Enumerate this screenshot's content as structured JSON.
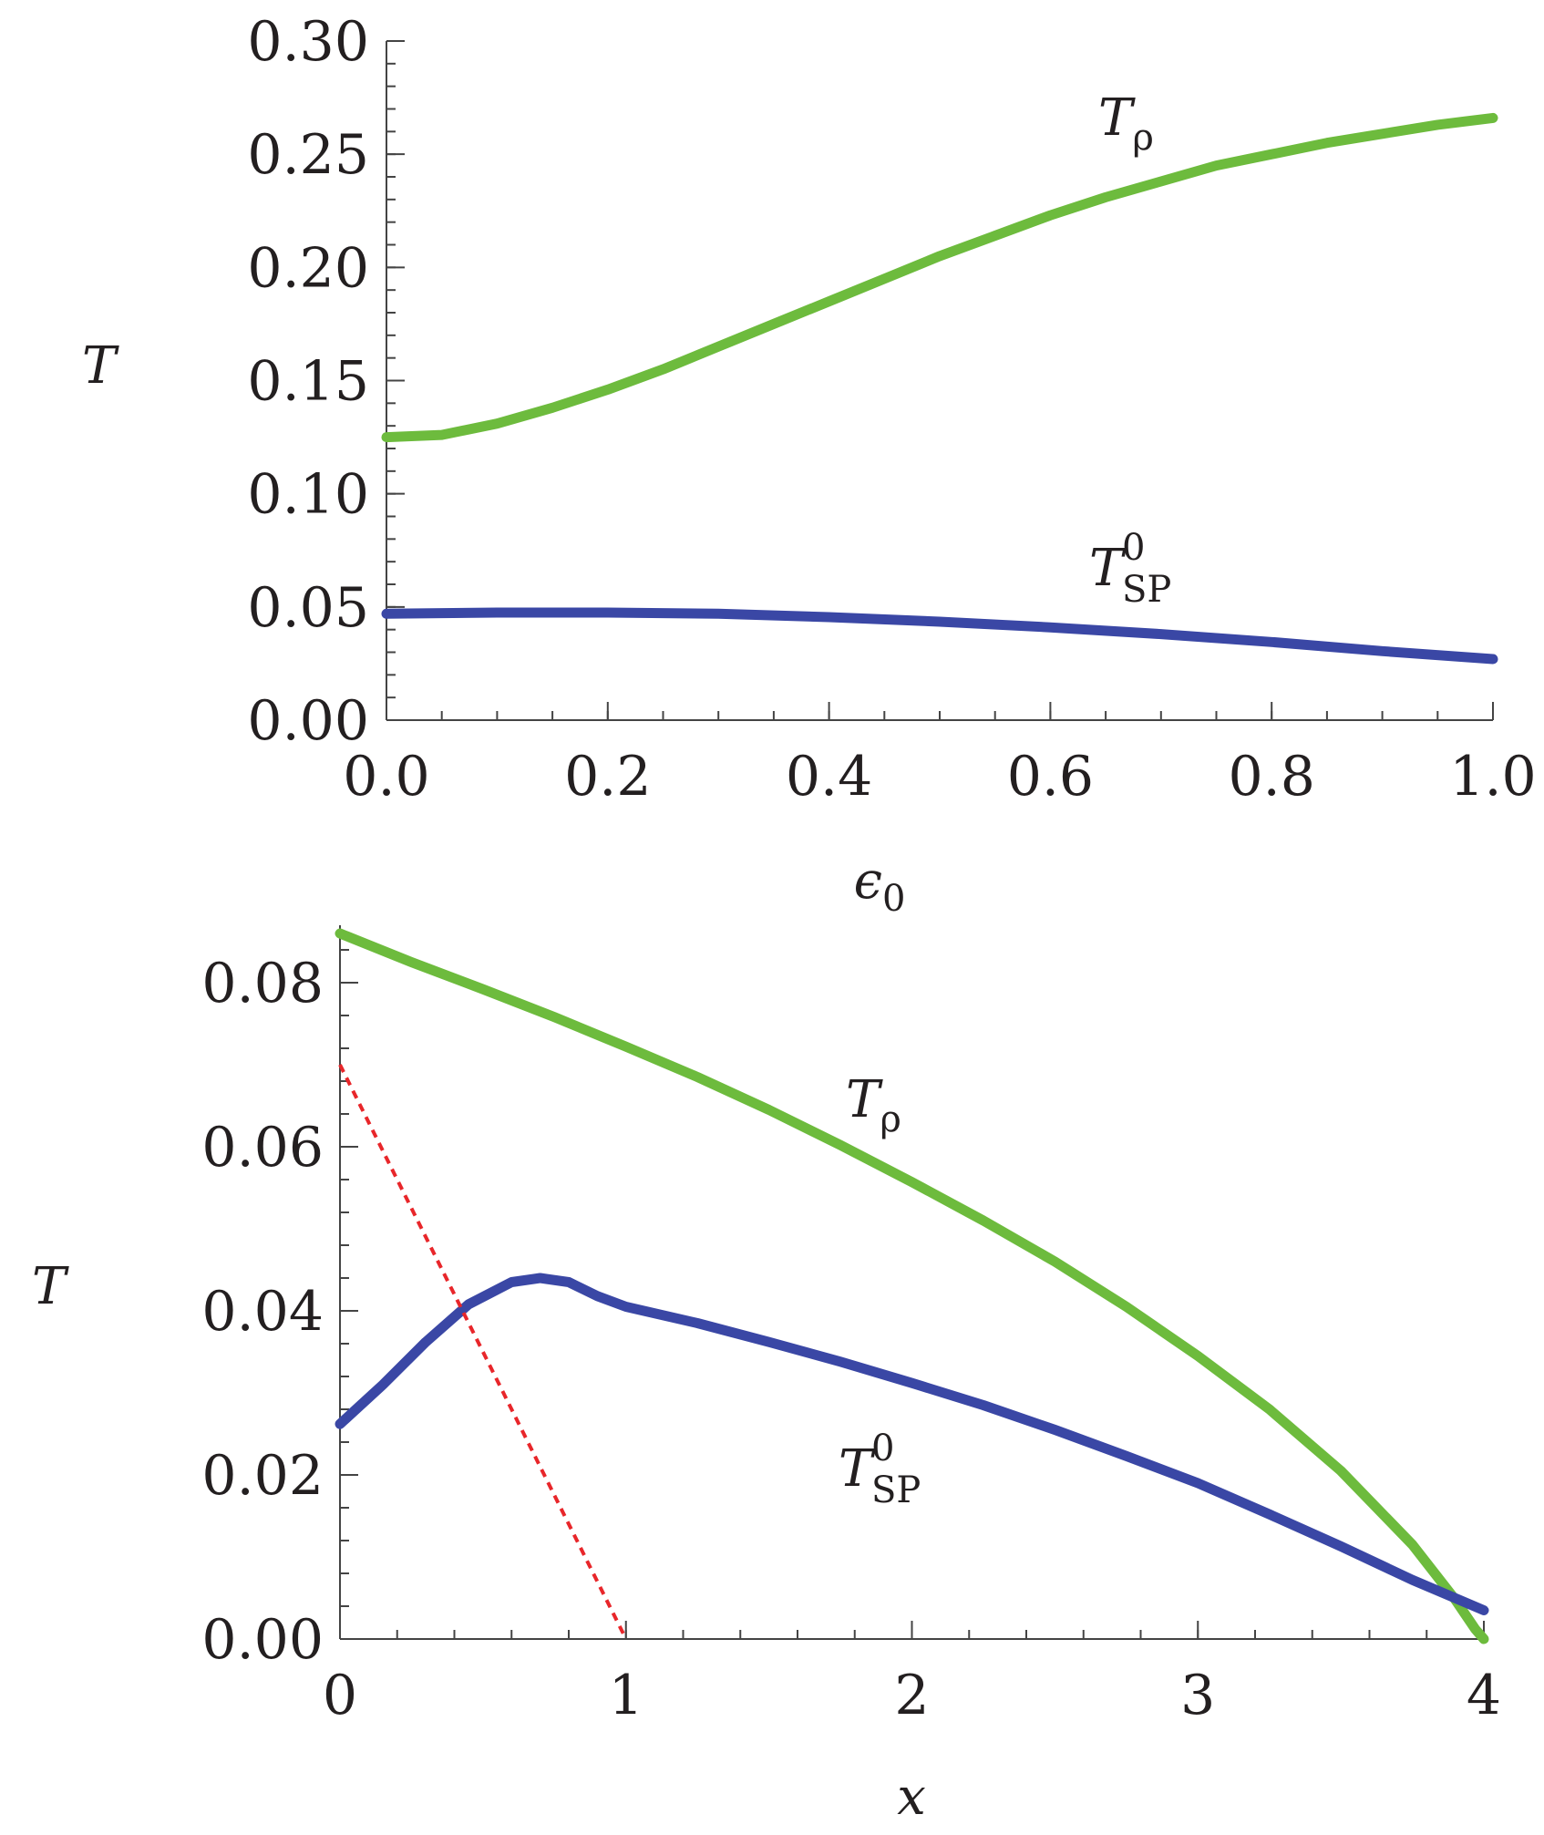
{
  "chart_data": [
    {
      "type": "line",
      "xlabel": "ϵ",
      "xlabel_sub": "0",
      "ylabel": "T",
      "xlim": [
        0.0,
        1.0
      ],
      "ylim": [
        0.0,
        0.3
      ],
      "xticks": [
        0.0,
        0.2,
        0.4,
        0.6,
        0.8,
        1.0
      ],
      "xtick_labels": [
        "0.0",
        "0.2",
        "0.4",
        "0.6",
        "0.8",
        "1.0"
      ],
      "yticks": [
        0.0,
        0.05,
        0.1,
        0.15,
        0.2,
        0.25,
        0.3
      ],
      "ytick_labels": [
        "0.00",
        "0.05",
        "0.10",
        "0.15",
        "0.20",
        "0.25",
        "0.30"
      ],
      "x_minor_step": 0.05,
      "y_minor_step": 0.01,
      "grid": false,
      "series": [
        {
          "name": "Tρ",
          "name_main": "T",
          "name_sub": "ρ",
          "name_sup": "",
          "color": "#6dbb3d",
          "dashed": false,
          "x": [
            0.0,
            0.05,
            0.1,
            0.15,
            0.2,
            0.25,
            0.3,
            0.35,
            0.4,
            0.45,
            0.5,
            0.55,
            0.6,
            0.65,
            0.7,
            0.75,
            0.8,
            0.85,
            0.9,
            0.95,
            1.0
          ],
          "y": [
            0.125,
            0.126,
            0.131,
            0.138,
            0.146,
            0.155,
            0.165,
            0.175,
            0.185,
            0.195,
            0.205,
            0.214,
            0.223,
            0.231,
            0.238,
            0.245,
            0.25,
            0.255,
            0.259,
            0.263,
            0.266
          ]
        },
        {
          "name": "T⁰SP",
          "name_main": "T",
          "name_sub": "SP",
          "name_sup": "0",
          "color": "#3a47a5",
          "dashed": false,
          "x": [
            0.0,
            0.1,
            0.2,
            0.3,
            0.4,
            0.5,
            0.6,
            0.7,
            0.8,
            0.9,
            1.0
          ],
          "y": [
            0.047,
            0.0475,
            0.0475,
            0.047,
            0.0455,
            0.0435,
            0.041,
            0.038,
            0.0345,
            0.0305,
            0.027
          ]
        }
      ]
    },
    {
      "type": "line",
      "xlabel": "x",
      "xlabel_sub": "",
      "ylabel": "T",
      "xlim": [
        0,
        4
      ],
      "ylim": [
        0.0,
        0.087
      ],
      "xticks": [
        0,
        1,
        2,
        3,
        4
      ],
      "xtick_labels": [
        "0",
        "1",
        "2",
        "3",
        "4"
      ],
      "yticks": [
        0.0,
        0.02,
        0.04,
        0.06,
        0.08
      ],
      "ytick_labels": [
        "0.00",
        "0.02",
        "0.04",
        "0.06",
        "0.08"
      ],
      "x_minor_step": 0.2,
      "y_minor_step": 0.004,
      "grid": false,
      "series": [
        {
          "name": "Tρ",
          "name_main": "T",
          "name_sub": "ρ",
          "name_sup": "",
          "color": "#6dbb3d",
          "dashed": false,
          "x": [
            0.0,
            0.25,
            0.5,
            0.75,
            1.0,
            1.25,
            1.5,
            1.75,
            2.0,
            2.25,
            2.5,
            2.75,
            3.0,
            3.25,
            3.5,
            3.75,
            3.9,
            3.97,
            4.0
          ],
          "y": [
            0.086,
            0.0825,
            0.0792,
            0.0758,
            0.0722,
            0.0685,
            0.0645,
            0.0602,
            0.0557,
            0.051,
            0.046,
            0.0405,
            0.0345,
            0.028,
            0.0205,
            0.0115,
            0.0048,
            0.0012,
            0.0
          ]
        },
        {
          "name": "T⁰SP",
          "name_main": "T",
          "name_sub": "SP",
          "name_sup": "0",
          "color": "#3a47a5",
          "dashed": false,
          "x": [
            0.0,
            0.15,
            0.3,
            0.45,
            0.6,
            0.7,
            0.8,
            0.9,
            1.0,
            1.25,
            1.5,
            1.75,
            2.0,
            2.25,
            2.5,
            2.75,
            3.0,
            3.25,
            3.5,
            3.75,
            4.0
          ],
          "y": [
            0.0262,
            0.031,
            0.0362,
            0.0408,
            0.0435,
            0.044,
            0.0435,
            0.0418,
            0.0405,
            0.0385,
            0.0362,
            0.0338,
            0.0312,
            0.0285,
            0.0255,
            0.0223,
            0.019,
            0.0152,
            0.0113,
            0.0072,
            0.0035
          ]
        },
        {
          "name": "",
          "name_main": "",
          "name_sub": "",
          "name_sup": "",
          "color": "#e8262a",
          "dashed": true,
          "x": [
            0.0,
            1.0
          ],
          "y": [
            0.07,
            0.0
          ]
        }
      ]
    }
  ]
}
